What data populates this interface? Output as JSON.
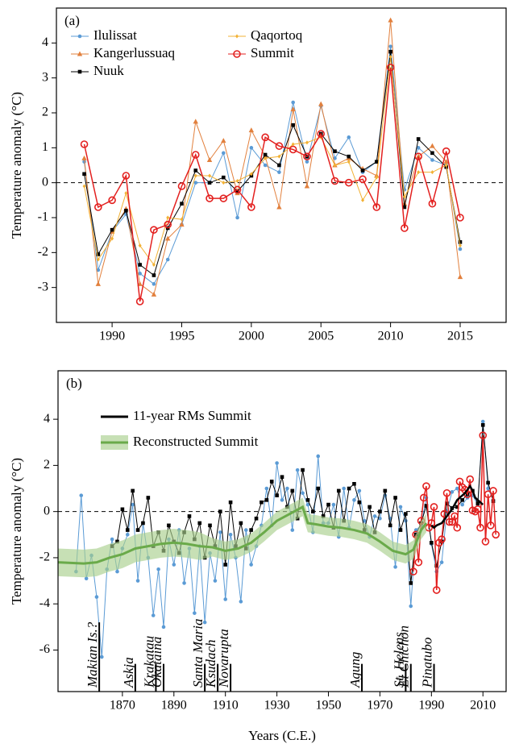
{
  "chart_data": [
    {
      "type": "line",
      "panel_label": "(a)",
      "ylabel": "Temperature anomaly (°C)",
      "x": [
        1988,
        1989,
        1990,
        1991,
        1992,
        1993,
        1994,
        1995,
        1996,
        1997,
        1998,
        1999,
        2000,
        2001,
        2002,
        2003,
        2004,
        2005,
        2006,
        2007,
        2008,
        2009,
        2010,
        2011,
        2012,
        2013,
        2014,
        2015
      ],
      "xlim": [
        1986,
        2018.3
      ],
      "ylim": [
        -4,
        5
      ],
      "xticks": [
        1990,
        1995,
        2000,
        2005,
        2010,
        2015
      ],
      "yticks": [
        -3,
        -2,
        -1,
        0,
        1,
        2,
        3,
        4
      ],
      "hline": 0,
      "legend": "upper left",
      "series": [
        {
          "name": "Ilulissat",
          "color": "#5b9bd5",
          "marker": "circle",
          "values": [
            0.6,
            -2.5,
            -1.4,
            -0.9,
            -2.6,
            -2.9,
            -2.2,
            -1.2,
            0.0,
            0.0,
            0.85,
            -1.0,
            1.0,
            0.5,
            0.3,
            2.3,
            0.6,
            2.2,
            0.7,
            1.3,
            0.3,
            0.6,
            3.9,
            -0.2,
            1.0,
            0.65,
            0.5,
            -1.9
          ]
        },
        {
          "name": "Kangerlussuaq",
          "color": "#e2803d",
          "marker": "triangle",
          "values": [
            0.7,
            -2.9,
            -1.4,
            -0.75,
            -2.9,
            -3.2,
            -1.6,
            -1.2,
            1.75,
            0.65,
            1.2,
            -0.3,
            1.5,
            0.75,
            -0.7,
            2.1,
            -0.1,
            2.25,
            0.5,
            0.7,
            0.4,
            0.2,
            4.65,
            -0.6,
            0.75,
            1.05,
            0.6,
            -2.7
          ]
        },
        {
          "name": "Nuuk",
          "color": "#000000",
          "marker": "square",
          "values": [
            0.25,
            -2.05,
            -1.35,
            -0.8,
            -2.35,
            -2.65,
            -1.3,
            -0.6,
            0.35,
            0.0,
            0.15,
            -0.25,
            0.2,
            0.8,
            0.5,
            1.65,
            0.75,
            1.4,
            0.9,
            0.75,
            0.35,
            0.6,
            3.75,
            -0.7,
            1.25,
            0.85,
            0.45,
            -1.7
          ]
        },
        {
          "name": "Qaqortoq",
          "color": "#f2b134",
          "marker": "diamond",
          "values": [
            -0.1,
            -2.2,
            -1.6,
            -0.3,
            -1.8,
            -2.35,
            -1.0,
            -1.05,
            0.2,
            0.2,
            0.0,
            0.05,
            0.25,
            0.7,
            0.75,
            1.1,
            1.15,
            1.3,
            0.5,
            0.6,
            -0.5,
            0.15,
            3.6,
            -0.4,
            0.3,
            0.3,
            0.5,
            -1.8
          ]
        },
        {
          "name": "Summit",
          "color": "#e3201f",
          "marker": "open-circle",
          "values": [
            1.1,
            -0.7,
            -0.5,
            0.2,
            -3.4,
            -1.35,
            -1.2,
            -0.1,
            0.8,
            -0.45,
            -0.45,
            -0.2,
            -0.7,
            1.3,
            1.05,
            0.95,
            0.75,
            1.4,
            0.05,
            0.0,
            0.1,
            -0.7,
            3.3,
            -1.3,
            0.75,
            -0.6,
            0.9,
            -1.0
          ]
        }
      ]
    },
    {
      "type": "line",
      "panel_label": "(b)",
      "ylabel": "Temperature anomaly (°C)",
      "xlabel": "Years (C.E.)",
      "xlim": [
        1845,
        2019
      ],
      "ylim": [
        -7.8,
        6.1
      ],
      "xticks": [
        1870,
        1890,
        1910,
        1930,
        1950,
        1970,
        1990,
        2010
      ],
      "yticks": [
        -6,
        -4,
        -2,
        0,
        2,
        4
      ],
      "hline": 0,
      "legend": "upper left",
      "series": [
        {
          "color": "#5b9bd5",
          "marker": "circle",
          "x": [
            1852,
            1854,
            1856,
            1858,
            1860,
            1862,
            1864,
            1866,
            1868,
            1870,
            1872,
            1874,
            1876,
            1878,
            1880,
            1882,
            1884,
            1886,
            1888,
            1890,
            1892,
            1894,
            1896,
            1898,
            1900,
            1902,
            1904,
            1906,
            1908,
            1910,
            1912,
            1914,
            1916,
            1918,
            1920,
            1922,
            1924,
            1926,
            1928,
            1930,
            1932,
            1934,
            1936,
            1938,
            1940,
            1942,
            1944,
            1946,
            1948,
            1950,
            1952,
            1954,
            1956,
            1958,
            1960,
            1962,
            1964,
            1966,
            1968,
            1970,
            1972,
            1974,
            1976,
            1978,
            1980,
            1982,
            1984,
            1986,
            1988,
            1990,
            1992,
            1994,
            1996,
            1998,
            2000,
            2002,
            2004,
            2006,
            2008,
            2010,
            2012,
            2014
          ],
          "values": [
            -2.6,
            0.7,
            -2.9,
            -1.9,
            -3.7,
            -6.3,
            -2.5,
            -1.2,
            -2.6,
            -1.6,
            -1.0,
            0.3,
            -3.0,
            -0.5,
            -2.0,
            -4.5,
            -2.5,
            -5.0,
            -1.2,
            -2.3,
            -0.8,
            -3.1,
            -1.6,
            -4.4,
            -1.5,
            -4.8,
            -1.8,
            -3.0,
            -0.9,
            -3.8,
            -1.0,
            -2.0,
            -3.9,
            -0.8,
            -2.3,
            -1.5,
            -0.6,
            1.0,
            -0.6,
            2.1,
            0.5,
            1.0,
            -0.8,
            1.8,
            0.8,
            0.3,
            -0.9,
            2.4,
            -0.5,
            -0.5,
            0.3,
            -1.1,
            1.0,
            -0.7,
            0.5,
            0.9,
            -0.4,
            -1.1,
            -0.2,
            -0.3,
            0.7,
            -0.3,
            -2.4,
            0.2,
            -0.4,
            -4.1,
            -0.8,
            -0.6,
            0.6,
            -1.4,
            -2.6,
            -2.2,
            0.0,
            0.85,
            1.0,
            0.3,
            0.6,
            0.7,
            0.3,
            3.9,
            1.0,
            0.5
          ]
        },
        {
          "color": "#000000",
          "marker": "square",
          "x": [
            1866,
            1868,
            1870,
            1872,
            1874,
            1876,
            1878,
            1880,
            1882,
            1884,
            1886,
            1888,
            1890,
            1892,
            1894,
            1896,
            1898,
            1900,
            1902,
            1904,
            1906,
            1908,
            1910,
            1912,
            1914,
            1916,
            1918,
            1920,
            1922,
            1924,
            1926,
            1928,
            1930,
            1932,
            1934,
            1936,
            1938,
            1940,
            1942,
            1944,
            1946,
            1948,
            1950,
            1952,
            1954,
            1956,
            1958,
            1960,
            1962,
            1964,
            1966,
            1968,
            1970,
            1972,
            1974,
            1976,
            1978,
            1980,
            1982,
            1984,
            1986,
            1988,
            1990,
            1992,
            1994,
            1996,
            1998,
            2000,
            2002,
            2004,
            2006,
            2008,
            2010,
            2012,
            2014
          ],
          "values": [
            -1.5,
            -1.3,
            0.1,
            -0.8,
            0.9,
            -0.8,
            -0.5,
            0.6,
            -1.5,
            -0.9,
            -1.7,
            -0.6,
            -1.3,
            -1.8,
            -0.9,
            -0.2,
            -1.2,
            -0.5,
            -2.0,
            -0.6,
            -1.5,
            0.0,
            -2.3,
            0.4,
            -1.5,
            -0.5,
            -1.6,
            -0.8,
            -0.3,
            0.4,
            0.5,
            1.3,
            0.7,
            1.5,
            0.2,
            0.9,
            -0.3,
            1.8,
            0.5,
            0.0,
            1.0,
            -0.2,
            0.3,
            -0.7,
            0.9,
            -0.4,
            1.0,
            1.2,
            0.4,
            -0.8,
            0.2,
            -0.9,
            0.0,
            0.9,
            -0.6,
            0.6,
            -0.8,
            -0.1,
            -3.1,
            -1.0,
            -0.5,
            0.25,
            -1.35,
            -2.35,
            -1.3,
            0.35,
            0.15,
            0.2,
            0.5,
            0.75,
            0.9,
            0.35,
            3.75,
            1.25,
            0.45
          ]
        },
        {
          "color": "#e3201f",
          "marker": "open-circle",
          "x": [
            1983,
            1984,
            1985,
            1986,
            1987,
            1988,
            1989,
            1990,
            1991,
            1992,
            1993,
            1994,
            1995,
            1996,
            1997,
            1998,
            1999,
            2000,
            2001,
            2002,
            2003,
            2004,
            2005,
            2006,
            2007,
            2008,
            2009,
            2010,
            2011,
            2012,
            2013,
            2014,
            2015
          ],
          "values": [
            -2.6,
            -1.0,
            -2.2,
            -0.4,
            0.6,
            1.1,
            -0.7,
            -0.5,
            0.2,
            -3.4,
            -1.35,
            -1.2,
            -0.1,
            0.8,
            -0.45,
            -0.45,
            -0.2,
            -0.7,
            1.3,
            1.05,
            0.95,
            0.75,
            1.4,
            0.05,
            0.0,
            0.1,
            -0.7,
            3.3,
            -1.3,
            0.75,
            -0.6,
            0.9,
            -1.0
          ]
        },
        {
          "name": "Reconstructed Summit",
          "color": "#6aaa4a",
          "band_color": "#a9d08e",
          "x": [
            1845,
            1855,
            1860,
            1865,
            1870,
            1875,
            1880,
            1885,
            1890,
            1895,
            1900,
            1905,
            1910,
            1915,
            1920,
            1925,
            1930,
            1935,
            1940,
            1942,
            1945,
            1950,
            1955,
            1960,
            1965,
            1970,
            1975,
            1980,
            1983,
            1986,
            1988
          ],
          "values": [
            -2.2,
            -2.25,
            -2.2,
            -2.0,
            -1.85,
            -1.6,
            -1.5,
            -1.4,
            -1.35,
            -1.4,
            -1.5,
            -1.55,
            -1.7,
            -1.6,
            -1.35,
            -0.9,
            -0.4,
            -0.1,
            0.2,
            -0.5,
            -0.55,
            -0.65,
            -0.7,
            -0.8,
            -0.95,
            -1.3,
            -1.7,
            -1.85,
            -1.65,
            -0.8,
            -0.5
          ],
          "lower": [
            -2.8,
            -2.85,
            -2.8,
            -2.6,
            -2.45,
            -2.2,
            -2.1,
            -2.0,
            -1.95,
            -2.0,
            -2.1,
            -1.95,
            -2.1,
            -2.0,
            -1.75,
            -1.3,
            -0.8,
            -0.5,
            -0.2,
            -0.9,
            -0.95,
            -1.05,
            -1.1,
            -1.2,
            -1.35,
            -1.7,
            -2.1,
            -2.25,
            -2.05,
            -1.2,
            -0.9
          ],
          "upper": [
            -1.6,
            -1.65,
            -1.6,
            -1.4,
            -1.25,
            -1.0,
            -0.9,
            -0.8,
            -0.75,
            -0.8,
            -0.9,
            -1.15,
            -1.3,
            -1.2,
            -0.95,
            -0.5,
            0.0,
            0.3,
            0.6,
            -0.1,
            -0.15,
            -0.25,
            -0.3,
            -0.4,
            -0.55,
            -0.9,
            -1.3,
            -1.45,
            -1.25,
            -0.4,
            -0.1
          ]
        },
        {
          "name": "11-year RMs Summit",
          "color": "#000000",
          "x": [
            1990,
            1991,
            1992,
            1994,
            1996,
            1998,
            2000,
            2002,
            2003,
            2005,
            2006,
            2007,
            2008,
            2010
          ],
          "values": [
            -0.6,
            -0.7,
            -0.6,
            -0.5,
            -0.2,
            0.1,
            0.5,
            0.7,
            0.8,
            1.1,
            0.9,
            0.6,
            0.5,
            0.3
          ]
        }
      ],
      "events": [
        {
          "label": "Makian Is.?",
          "x": 1861,
          "ytop": -4.8
        },
        {
          "label": "Askja",
          "x": 1875,
          "ytop": -6.6
        },
        {
          "label": "Krakatau",
          "x": 1883,
          "ytop": -6.6
        },
        {
          "label": "Okataina",
          "x": 1886,
          "ytop": -6.6
        },
        {
          "label": "Santa Maria",
          "x": 1902,
          "ytop": -6.6
        },
        {
          "label": "Ksudach",
          "x": 1907,
          "ytop": -6.6
        },
        {
          "label": "Novarupta",
          "x": 1912,
          "ytop": -6.6
        },
        {
          "label": "Agung",
          "x": 1963,
          "ytop": -6.6
        },
        {
          "label": "St. Helens",
          "x": 1980,
          "ytop": -6.6
        },
        {
          "label": "El Chichon",
          "x": 1982,
          "ytop": -6.6
        },
        {
          "label": "Pinatubo",
          "x": 1991,
          "ytop": -6.6
        }
      ]
    }
  ]
}
